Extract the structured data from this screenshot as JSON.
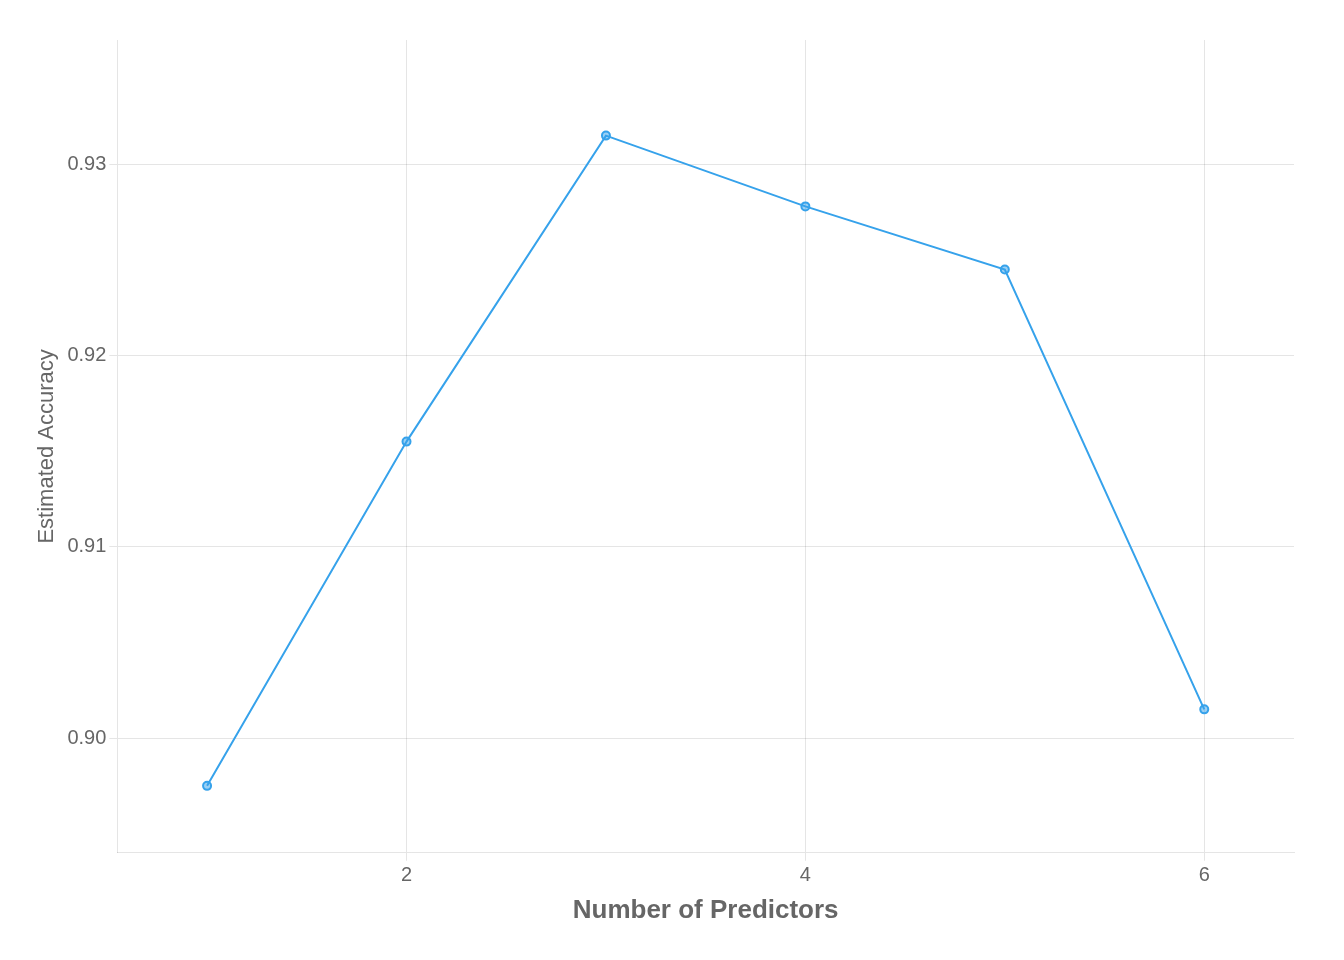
{
  "chart_data": {
    "type": "line",
    "x": [
      1,
      2,
      3,
      4,
      5,
      6
    ],
    "values": [
      0.8975,
      0.9155,
      0.9315,
      0.9278,
      0.9245,
      0.9015
    ],
    "x_label": "Number of Predictors",
    "y_label": "Estimated Accuracy",
    "xlim": [
      0.55,
      6.45
    ],
    "ylim": [
      0.894,
      0.9365
    ],
    "xticks": [
      2,
      4,
      6
    ],
    "yticks": [
      {
        "value": 0.9,
        "label": "0.90"
      },
      0.91,
      0.92,
      0.93
    ],
    "grid": true,
    "marker": "circle"
  }
}
